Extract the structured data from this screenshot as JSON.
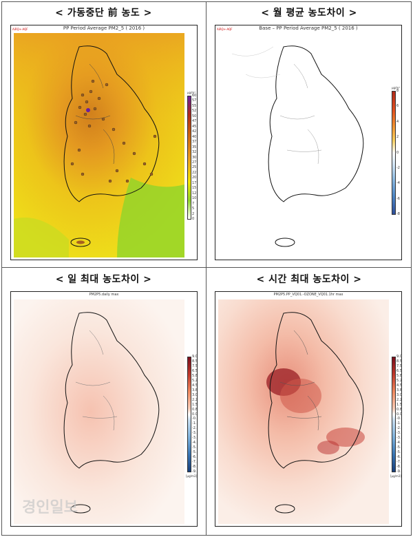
{
  "panels": [
    {
      "heading": "< 가동중단 前 농도 >",
      "plot_title": "PP Period Average PM2_5 ( 2016 )",
      "corner_label": "AiRQ+-AQF",
      "colorbar": {
        "unit": "μg/m³",
        "ticks": [
          "60",
          "57",
          "55",
          "52",
          "50",
          "47",
          "45",
          "42",
          "40",
          "37",
          "35",
          "32",
          "30",
          "27",
          "25",
          "22",
          "20",
          "17",
          "15",
          "12",
          "10",
          "7",
          "5",
          "2",
          "0"
        ]
      }
    },
    {
      "heading": "< 월 평균 농도차이 >",
      "plot_title": "Base – PP Period Average PM2_5 ( 2016 )",
      "corner_label": "AiRQ+-AQF",
      "colorbar": {
        "unit": "μg/m³",
        "ticks": [
          "8",
          "6",
          "4",
          "2",
          "0",
          "-2",
          "-4",
          "-6",
          "-8"
        ]
      }
    },
    {
      "heading": "< 일 최대 농도차이 >",
      "plot_title": "PM2P5.daily max",
      "colorbar": {
        "unit": "[μg/m3]",
        "ticks": [
          "9.0",
          "8.5",
          "7.5",
          "6.5",
          "5.8",
          "5.2",
          "4.5",
          "3.8",
          "3.0",
          "2.2",
          "1.5",
          "0.8",
          "0.0",
          "-0.8",
          "-1.5",
          "-2.2",
          "-3.0",
          "-3.8",
          "-4.5",
          "-5.2",
          "-5.8",
          "-6.5",
          "-7.5",
          "-8.5",
          "-9.0"
        ]
      }
    },
    {
      "heading": "< 시간 최대 농도차이 >",
      "plot_title": "PM2P5.PP_VQ01.-OZONE_VQ01.1hr max",
      "colorbar": {
        "unit": "[μg/m3]",
        "ticks": [
          "9.0",
          "8.5",
          "7.5",
          "6.5",
          "5.8",
          "5.2",
          "4.5",
          "3.8",
          "3.0",
          "2.2",
          "1.5",
          "0.8",
          "0.0",
          "-0.8",
          "-1.5",
          "-2.2",
          "-3.0",
          "-3.8",
          "-4.5",
          "-5.2",
          "-5.8",
          "-6.5",
          "-7.5",
          "-8.5",
          "-9.0"
        ]
      }
    }
  ],
  "watermark": "경인일보",
  "colors": {
    "pm_low": "#f0e400",
    "pm_mid": "#e89a20",
    "pm_high": "#b06010",
    "diff_pos": "#c0392b",
    "diff_neg": "#2e6fb0",
    "outline": "#111111"
  }
}
